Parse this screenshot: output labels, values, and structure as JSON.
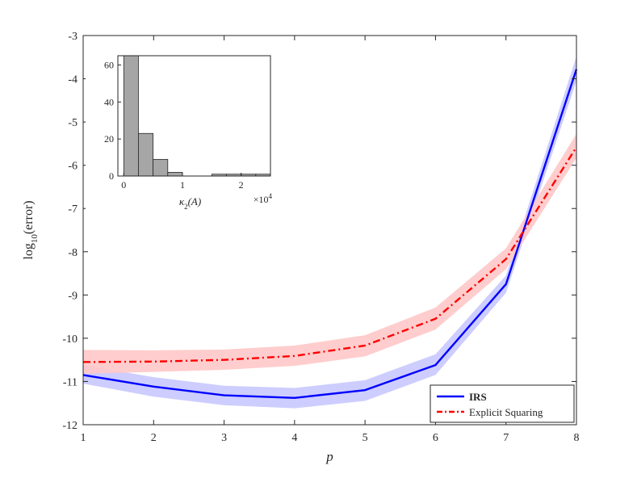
{
  "chart_data": [
    {
      "type": "line",
      "title": "",
      "xlabel": "p",
      "ylabel": "log10(error)",
      "xlim": [
        1,
        8
      ],
      "ylim": [
        -12,
        -3
      ],
      "xticks": [
        1,
        2,
        3,
        4,
        5,
        6,
        7,
        8
      ],
      "yticks": [
        -12,
        -11,
        -10,
        -9,
        -8,
        -7,
        -6,
        -5,
        -4,
        -3
      ],
      "x": [
        1,
        2,
        3,
        4,
        5,
        6,
        7,
        8
      ],
      "legend_position": "bottom-right",
      "series": [
        {
          "name": "IRS",
          "color": "#0000ff",
          "band_color": "#c8c8ff",
          "line_style": "solid",
          "values": [
            -10.85,
            -11.12,
            -11.32,
            -11.38,
            -11.2,
            -10.62,
            -8.75,
            -3.78
          ],
          "lower": [
            -11.05,
            -11.35,
            -11.55,
            -11.62,
            -11.45,
            -10.85,
            -8.95,
            -4.05
          ],
          "upper": [
            -10.62,
            -10.9,
            -11.1,
            -11.15,
            -10.97,
            -10.37,
            -8.55,
            -3.48
          ]
        },
        {
          "name": "Explicit Squaring",
          "color": "#ff0000",
          "band_color": "#ffc8c8",
          "line_style": "dash-dot",
          "values": [
            -10.55,
            -10.54,
            -10.5,
            -10.41,
            -10.17,
            -9.55,
            -8.17,
            -5.58
          ],
          "lower": [
            -10.82,
            -10.78,
            -10.73,
            -10.64,
            -10.42,
            -9.8,
            -8.4,
            -5.83
          ],
          "upper": [
            -10.27,
            -10.28,
            -10.26,
            -10.17,
            -9.93,
            -9.29,
            -7.92,
            -5.27
          ]
        }
      ]
    },
    {
      "type": "bar",
      "title": "",
      "xlabel": "κ2(A)",
      "x_multiplier": "×10^4",
      "ylabel": "",
      "xlim": [
        -0.1,
        2.5
      ],
      "ylim": [
        0,
        65
      ],
      "xticks": [
        0,
        1,
        2
      ],
      "yticks": [
        0,
        20,
        40,
        60
      ],
      "bin_width": 0.25,
      "bin_starts": [
        0,
        0.25,
        0.5,
        0.75,
        1.0,
        1.25,
        1.5,
        1.75,
        2.0,
        2.25
      ],
      "values": [
        66,
        23,
        9,
        2,
        0,
        0,
        1,
        1,
        1,
        1
      ],
      "bar_color": "#a6a6a6"
    }
  ]
}
